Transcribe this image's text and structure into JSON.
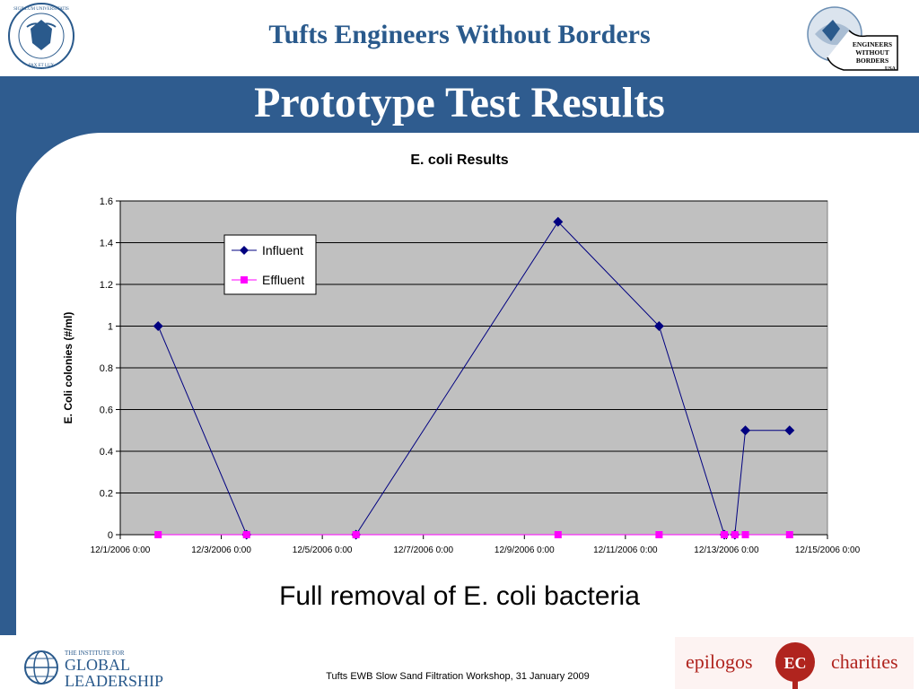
{
  "header": {
    "title": "Tufts Engineers Without Borders",
    "left_seal_text": "SIGILLUM UNIVERSITATIS TUFTSIENSIS PAX ET LUX 1852",
    "right_logo_text": [
      "ENGINEERS",
      "WITHOUT",
      "BORDERS",
      "USA"
    ]
  },
  "slide": {
    "title": "Prototype Test Results",
    "caption": "Full removal of E. coli bacteria"
  },
  "footer": {
    "note": "Tufts EWB Slow Sand Filtration Workshop, 31 January 2009",
    "left_logo": {
      "line1": "THE INSTITUTE FOR",
      "line2": "GLOBAL",
      "line3": "LEADERSHIP"
    },
    "right_logo": {
      "left_word": "epilogos",
      "mark": "EC",
      "right_word": "charities"
    }
  },
  "colors": {
    "band": "#2f5c8f",
    "header_title": "#2a5a8c",
    "influent": "#000080",
    "effluent": "#ff00ff",
    "plot_bg": "#c0c0c0"
  },
  "chart_data": {
    "type": "line",
    "title": "E. coli Results",
    "xlabel": "",
    "ylabel": "E. Coli colonies (#/ml)",
    "xlim": [
      "2006-12-01",
      "2006-12-15"
    ],
    "ylim": [
      0,
      1.6
    ],
    "x_tick_labels": [
      "12/1/2006 0:00",
      "12/3/2006 0:00",
      "12/5/2006 0:00",
      "12/7/2006 0:00",
      "12/9/2006 0:00",
      "12/11/2006 0:00",
      "12/13/2006 0:00",
      "12/15/2006 0:00"
    ],
    "y_tick_labels": [
      "0",
      "0.2",
      "0.4",
      "0.6",
      "0.8",
      "1",
      "1.2",
      "1.4",
      "1.6"
    ],
    "grid": true,
    "legend_position": "top-left",
    "series": [
      {
        "name": "Influent",
        "marker": "diamond",
        "x": [
          "2006-12-01 18:00",
          "2006-12-03 12:00",
          "2006-12-05 16:00",
          "2006-12-09 16:00",
          "2006-12-11 16:00",
          "2006-12-12 23:00",
          "2006-12-13 04:00",
          "2006-12-13 09:00",
          "2006-12-14 06:00"
        ],
        "y": [
          1,
          0,
          0,
          1.5,
          1,
          0,
          0,
          0.5,
          0.5
        ]
      },
      {
        "name": "Effluent",
        "marker": "square",
        "x": [
          "2006-12-01 18:00",
          "2006-12-03 12:00",
          "2006-12-05 16:00",
          "2006-12-09 16:00",
          "2006-12-11 16:00",
          "2006-12-12 23:00",
          "2006-12-13 04:00",
          "2006-12-13 09:00",
          "2006-12-14 06:00"
        ],
        "y": [
          0,
          0,
          0,
          0,
          0,
          0,
          0,
          0,
          0
        ]
      }
    ]
  }
}
